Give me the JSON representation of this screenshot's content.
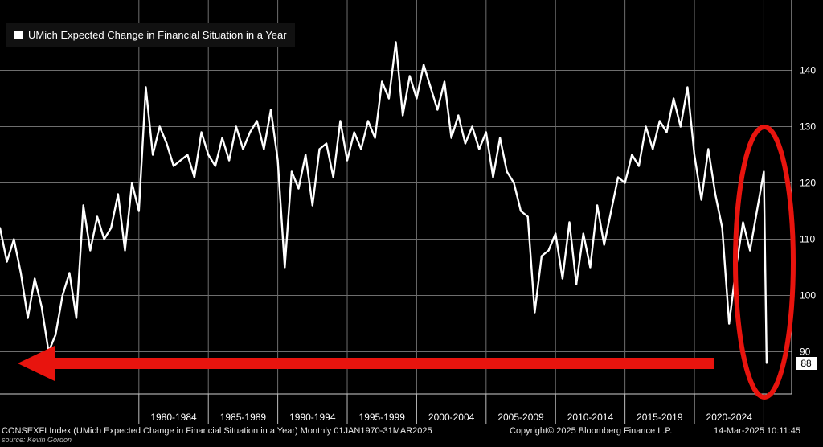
{
  "chart_data": {
    "type": "line",
    "title": "",
    "legend": {
      "entries": [
        "UMich Expected Change in Financial Situation in a Year"
      ],
      "placement": "top-left"
    },
    "series": [
      {
        "name": "UMich Expected Change in Financial Situation in a Year",
        "color": "#ffffff",
        "x": [
          1970.0,
          1970.5,
          1971.0,
          1971.5,
          1972.0,
          1972.5,
          1973.0,
          1973.5,
          1974.0,
          1974.5,
          1975.0,
          1975.5,
          1976.0,
          1976.5,
          1977.0,
          1977.5,
          1978.0,
          1978.5,
          1979.0,
          1979.5,
          1980.0,
          1980.5,
          1981.0,
          1981.5,
          1982.0,
          1982.5,
          1983.0,
          1983.5,
          1984.0,
          1984.5,
          1985.0,
          1985.5,
          1986.0,
          1986.5,
          1987.0,
          1987.5,
          1988.0,
          1988.5,
          1989.0,
          1989.5,
          1990.0,
          1990.5,
          1991.0,
          1991.5,
          1992.0,
          1992.5,
          1993.0,
          1993.5,
          1994.0,
          1994.5,
          1995.0,
          1995.5,
          1996.0,
          1996.5,
          1997.0,
          1997.5,
          1998.0,
          1998.5,
          1999.0,
          1999.5,
          2000.0,
          2000.5,
          2001.0,
          2001.5,
          2002.0,
          2002.5,
          2003.0,
          2003.5,
          2004.0,
          2004.5,
          2005.0,
          2005.5,
          2006.0,
          2006.5,
          2007.0,
          2007.5,
          2008.0,
          2008.5,
          2009.0,
          2009.5,
          2010.0,
          2010.5,
          2011.0,
          2011.5,
          2012.0,
          2012.5,
          2013.0,
          2013.5,
          2014.0,
          2014.5,
          2015.0,
          2015.5,
          2016.0,
          2016.5,
          2017.0,
          2017.5,
          2018.0,
          2018.5,
          2019.0,
          2019.5,
          2020.0,
          2020.5,
          2021.0,
          2021.5,
          2022.0,
          2022.5,
          2023.0,
          2023.5,
          2024.0,
          2024.5,
          2025.0,
          2025.2
        ],
        "values": [
          112,
          106,
          110,
          104,
          96,
          103,
          98,
          90,
          93,
          100,
          104,
          96,
          116,
          108,
          114,
          110,
          112,
          118,
          108,
          120,
          115,
          137,
          125,
          130,
          127,
          123,
          124,
          125,
          121,
          129,
          125,
          123,
          128,
          124,
          130,
          126,
          129,
          131,
          126,
          133,
          124,
          105,
          122,
          119,
          125,
          116,
          126,
          127,
          121,
          131,
          124,
          129,
          126,
          131,
          128,
          138,
          135,
          145,
          132,
          139,
          135,
          141,
          137,
          133,
          138,
          128,
          132,
          127,
          130,
          126,
          129,
          121,
          128,
          122,
          120,
          115,
          114,
          97,
          107,
          108,
          111,
          103,
          113,
          102,
          111,
          105,
          116,
          109,
          115,
          121,
          120,
          125,
          123,
          130,
          126,
          131,
          129,
          135,
          130,
          137,
          125,
          117,
          126,
          118,
          112,
          95,
          105,
          113,
          108,
          115,
          122,
          88
        ]
      }
    ],
    "xlabels": [
      "1980-1984",
      "1985-1989",
      "1990-1994",
      "1995-1999",
      "2000-2004",
      "2005-2009",
      "2010-2014",
      "2015-2019",
      "2020-2024"
    ],
    "yticks": [
      90,
      100,
      110,
      120,
      130,
      140
    ],
    "ylim": [
      82.5,
      152.5
    ],
    "xlim": [
      1970.0,
      2027.0
    ],
    "last_value_label": "88",
    "grid": true,
    "annotations": [
      "red left arrow along the 1970 low",
      "red ellipse around the 2020-2025 tail"
    ]
  },
  "footer": {
    "left": "CONSEXFI Index (UMich Expected Change in Financial Situation in a Year) Monthly 01JAN1970-31MAR2025",
    "source": "source: Kevin Gordon",
    "center": "Copyright© 2025 Bloomberg Finance L.P.",
    "right": "14-Mar-2025 10:11:45"
  },
  "colors": {
    "background": "#000000",
    "grid": "#6e6e6e",
    "line": "#ffffff",
    "accent": "#e8140e"
  }
}
